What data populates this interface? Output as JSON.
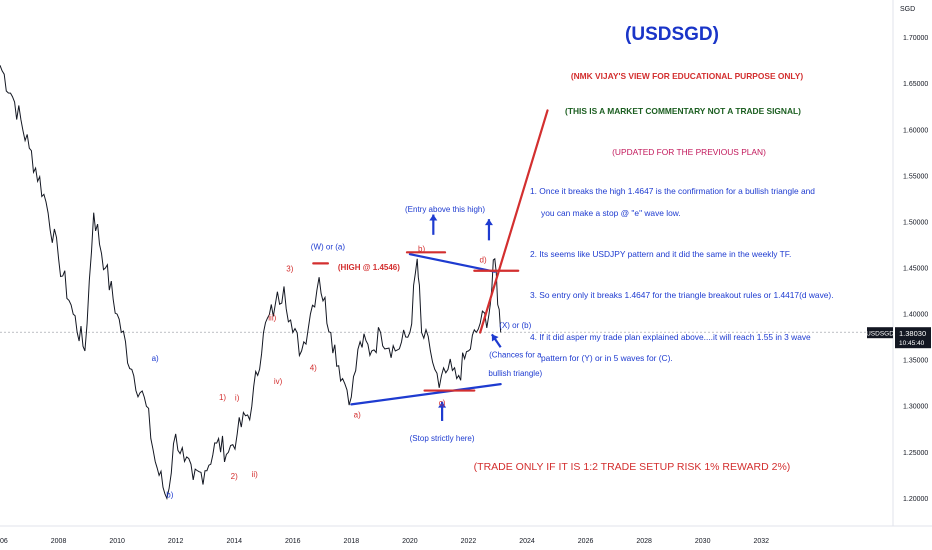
{
  "chart_data": {
    "type": "line",
    "title": "(USDSGD)",
    "symbol": "USDSGD",
    "currency": "SGD",
    "ylim": [
      1.17,
      1.73
    ],
    "xlim": [
      2006.0,
      2036.5
    ],
    "y_ticks": [
      "1.70000",
      "1.65000",
      "1.60000",
      "1.55000",
      "1.50000",
      "1.45000",
      "1.40000",
      "1.35000",
      "1.30000",
      "1.25000",
      "1.20000"
    ],
    "x_ticks": [
      "06",
      "2008",
      "2010",
      "2012",
      "2014",
      "2016",
      "2018",
      "2020",
      "2022",
      "2024",
      "2026",
      "2028",
      "2030",
      "2032"
    ],
    "last_price": {
      "value": "1.38030",
      "label": "USDSGD",
      "countdown": "10:45:40",
      "y": 1.3803
    },
    "series": [
      {
        "x": [
          2006.0,
          2006.5,
          2007.0,
          2007.5,
          2008.0,
          2008.5,
          2008.9,
          2009.2,
          2009.6,
          2010.0,
          2010.5,
          2011.0,
          2011.3,
          2011.7,
          2012.0,
          2012.3,
          2012.6,
          2013.0,
          2013.4,
          2013.8,
          2014.1,
          2014.6,
          2015.0,
          2015.4,
          2015.7,
          2016.0,
          2016.3,
          2016.6,
          2016.9,
          2017.3,
          2017.7,
          2018.0,
          2018.3,
          2018.7,
          2019.0,
          2019.5,
          2020.0,
          2020.25,
          2020.4,
          2020.7,
          2021.0,
          2021.3,
          2021.6,
          2022.0,
          2022.4,
          2022.7,
          2022.9,
          2023.1
        ],
        "y": [
          1.67,
          1.63,
          1.58,
          1.53,
          1.46,
          1.4,
          1.36,
          1.51,
          1.45,
          1.4,
          1.34,
          1.3,
          1.24,
          1.2,
          1.27,
          1.24,
          1.22,
          1.23,
          1.26,
          1.25,
          1.27,
          1.3,
          1.38,
          1.41,
          1.43,
          1.38,
          1.36,
          1.4,
          1.44,
          1.38,
          1.33,
          1.31,
          1.37,
          1.36,
          1.38,
          1.36,
          1.38,
          1.46,
          1.38,
          1.36,
          1.32,
          1.34,
          1.33,
          1.36,
          1.39,
          1.4,
          1.46,
          1.38
        ]
      }
    ],
    "wave_labels": [
      {
        "text": "a)",
        "x": 2011.3,
        "y": 1.349,
        "color": "#1e3bd0"
      },
      {
        "text": "b)",
        "x": 2011.8,
        "y": 1.201,
        "color": "#1e3bd0"
      },
      {
        "text": "1)",
        "x": 2013.6,
        "y": 1.307,
        "color": "#d32f2f"
      },
      {
        "text": "i)",
        "x": 2014.1,
        "y": 1.306,
        "color": "#d32f2f"
      },
      {
        "text": "2)",
        "x": 2014.0,
        "y": 1.221,
        "color": "#d32f2f"
      },
      {
        "text": "ii)",
        "x": 2014.7,
        "y": 1.223,
        "color": "#d32f2f"
      },
      {
        "text": "iii)",
        "x": 2015.3,
        "y": 1.393,
        "color": "#d32f2f"
      },
      {
        "text": "iv)",
        "x": 2015.5,
        "y": 1.324,
        "color": "#d32f2f"
      },
      {
        "text": "3)",
        "x": 2015.9,
        "y": 1.446,
        "color": "#d32f2f"
      },
      {
        "text": "4)",
        "x": 2016.7,
        "y": 1.339,
        "color": "#d32f2f"
      },
      {
        "text": "a)",
        "x": 2018.2,
        "y": 1.288,
        "color": "#d32f2f"
      },
      {
        "text": "b)",
        "x": 2020.4,
        "y": 1.468,
        "color": "#d32f2f"
      },
      {
        "text": "c)",
        "x": 2021.1,
        "y": 1.301,
        "color": "#d32f2f"
      },
      {
        "text": "d)",
        "x": 2022.5,
        "y": 1.456,
        "color": "#d32f2f"
      }
    ],
    "annotations": [
      {
        "text": "(W) or (a)",
        "x": 2017.2,
        "y": 1.47,
        "color": "#1e3bd0"
      },
      {
        "text": "(HIGH @ 1.4546)",
        "x": 2018.6,
        "y": 1.448,
        "color": "#d32f2f",
        "bold": true
      },
      {
        "text": "(Entry above this high)",
        "x": 2021.2,
        "y": 1.511,
        "color": "#1e3bd0"
      },
      {
        "text": "(X) or (b)",
        "x": 2023.6,
        "y": 1.385,
        "color": "#1e3bd0"
      },
      {
        "text": "(Chances for a",
        "x": 2023.6,
        "y": 1.353,
        "color": "#1e3bd0"
      },
      {
        "text": "bullish triangle)",
        "x": 2023.6,
        "y": 1.333,
        "color": "#1e3bd0"
      },
      {
        "text": "(Stop strictly here)",
        "x": 2021.1,
        "y": 1.262,
        "color": "#1e3bd0"
      }
    ],
    "drawings": [
      {
        "type": "line",
        "from": [
          2022.4,
          1.38
        ],
        "to": [
          2024.7,
          1.621
        ],
        "color": "#d32f2f"
      },
      {
        "type": "line",
        "from": [
          2020.0,
          1.465
        ],
        "to": [
          2022.9,
          1.446
        ],
        "color": "#1e3bd0"
      },
      {
        "type": "line",
        "from": [
          2018.0,
          1.302
        ],
        "to": [
          2023.1,
          1.324
        ],
        "color": "#1e3bd0"
      },
      {
        "type": "line",
        "from": [
          2016.7,
          1.455
        ],
        "to": [
          2017.2,
          1.455
        ],
        "color": "#d32f2f"
      },
      {
        "type": "line",
        "from": [
          2019.9,
          1.467
        ],
        "to": [
          2021.2,
          1.467
        ],
        "color": "#d32f2f"
      },
      {
        "type": "line",
        "from": [
          2022.2,
          1.447
        ],
        "to": [
          2023.7,
          1.447
        ],
        "color": "#d32f2f"
      },
      {
        "type": "line",
        "from": [
          2020.5,
          1.317
        ],
        "to": [
          2022.2,
          1.317
        ],
        "color": "#d32f2f"
      }
    ],
    "arrows": [
      {
        "x": 2020.8,
        "y_from": 1.486,
        "y_to": 1.508,
        "color": "#1e3bd0"
      },
      {
        "x": 2022.7,
        "y_from": 1.48,
        "y_to": 1.503,
        "color": "#1e3bd0"
      },
      {
        "x": 2021.1,
        "y_from": 1.284,
        "y_to": 1.305,
        "color": "#1e3bd0"
      },
      {
        "x": 2023.1,
        "y_from": 1.364,
        "y_to": 1.378,
        "x_to": 2022.8,
        "color": "#1e3bd0"
      }
    ]
  },
  "commentary": {
    "disclaimer": "(NMK VIJAY'S VIEW FOR EDUCATIONAL PURPOSE ONLY)",
    "notice": "(THIS IS A MARKET COMMENTARY NOT A TRADE SIGNAL)",
    "update": "(UPDATED FOR THE PREVIOUS PLAN)",
    "points": [
      "1. Once it breaks the high 1.4647 is the confirmation for a bullish triangle and",
      "you can make a stop @ \"e\" wave low.",
      "2. Its seems like USDJPY pattern and it did the same in the weekly TF.",
      "3. So entry only it breaks 1.4647 for the triangle breakout rules or 1.4417(d wave).",
      "4. If it did asper my trade plan explained above....it will reach 1.55 in 3 wave",
      "pattern for (Y) or in 5 waves for (C)."
    ],
    "trade_rule": "(TRADE ONLY IF IT IS 1:2 TRADE SETUP RISK 1% REWARD 2%)"
  },
  "colors": {
    "title": "#1a35c8",
    "red": "#d32f2f",
    "blue": "#1e3bd0",
    "green": "#1b5e20",
    "magenta": "#c2185b",
    "price_tag": "#131722"
  }
}
